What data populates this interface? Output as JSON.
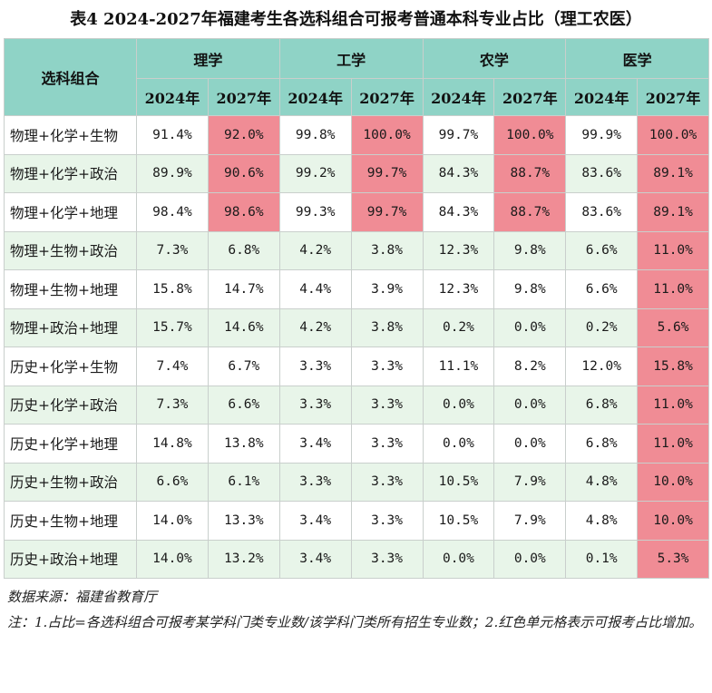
{
  "title": "表4 2024-2027年福建考生各选科组合可报考普通本科专业占比（理工农医）",
  "header": {
    "combo_label": "选科组合",
    "groups": [
      "理学",
      "工学",
      "农学",
      "医学"
    ],
    "year_a": "2024年",
    "year_b": "2027年"
  },
  "rows": [
    {
      "combo": "物理+化学+生物",
      "values": [
        "91.4%",
        "92.0%",
        "99.8%",
        "100.0%",
        "99.7%",
        "100.0%",
        "99.9%",
        "100.0%"
      ],
      "red": [
        false,
        true,
        false,
        true,
        false,
        true,
        false,
        true
      ]
    },
    {
      "combo": "物理+化学+政治",
      "values": [
        "89.9%",
        "90.6%",
        "99.2%",
        "99.7%",
        "84.3%",
        "88.7%",
        "83.6%",
        "89.1%"
      ],
      "red": [
        false,
        true,
        false,
        true,
        false,
        true,
        false,
        true
      ]
    },
    {
      "combo": "物理+化学+地理",
      "values": [
        "98.4%",
        "98.6%",
        "99.3%",
        "99.7%",
        "84.3%",
        "88.7%",
        "83.6%",
        "89.1%"
      ],
      "red": [
        false,
        true,
        false,
        true,
        false,
        true,
        false,
        true
      ]
    },
    {
      "combo": "物理+生物+政治",
      "values": [
        "7.3%",
        "6.8%",
        "4.2%",
        "3.8%",
        "12.3%",
        "9.8%",
        "6.6%",
        "11.0%"
      ],
      "red": [
        false,
        false,
        false,
        false,
        false,
        false,
        false,
        true
      ]
    },
    {
      "combo": "物理+生物+地理",
      "values": [
        "15.8%",
        "14.7%",
        "4.4%",
        "3.9%",
        "12.3%",
        "9.8%",
        "6.6%",
        "11.0%"
      ],
      "red": [
        false,
        false,
        false,
        false,
        false,
        false,
        false,
        true
      ]
    },
    {
      "combo": "物理+政治+地理",
      "values": [
        "15.7%",
        "14.6%",
        "4.2%",
        "3.8%",
        "0.2%",
        "0.0%",
        "0.2%",
        "5.6%"
      ],
      "red": [
        false,
        false,
        false,
        false,
        false,
        false,
        false,
        true
      ]
    },
    {
      "combo": "历史+化学+生物",
      "values": [
        "7.4%",
        "6.7%",
        "3.3%",
        "3.3%",
        "11.1%",
        "8.2%",
        "12.0%",
        "15.8%"
      ],
      "red": [
        false,
        false,
        false,
        false,
        false,
        false,
        false,
        true
      ]
    },
    {
      "combo": "历史+化学+政治",
      "values": [
        "7.3%",
        "6.6%",
        "3.3%",
        "3.3%",
        "0.0%",
        "0.0%",
        "6.8%",
        "11.0%"
      ],
      "red": [
        false,
        false,
        false,
        false,
        false,
        false,
        false,
        true
      ]
    },
    {
      "combo": "历史+化学+地理",
      "values": [
        "14.8%",
        "13.8%",
        "3.4%",
        "3.3%",
        "0.0%",
        "0.0%",
        "6.8%",
        "11.0%"
      ],
      "red": [
        false,
        false,
        false,
        false,
        false,
        false,
        false,
        true
      ]
    },
    {
      "combo": "历史+生物+政治",
      "values": [
        "6.6%",
        "6.1%",
        "3.3%",
        "3.3%",
        "10.5%",
        "7.9%",
        "4.8%",
        "10.0%"
      ],
      "red": [
        false,
        false,
        false,
        false,
        false,
        false,
        false,
        true
      ]
    },
    {
      "combo": "历史+生物+地理",
      "values": [
        "14.0%",
        "13.3%",
        "3.4%",
        "3.3%",
        "10.5%",
        "7.9%",
        "4.8%",
        "10.0%"
      ],
      "red": [
        false,
        false,
        false,
        false,
        false,
        false,
        false,
        true
      ]
    },
    {
      "combo": "历史+政治+地理",
      "values": [
        "14.0%",
        "13.2%",
        "3.4%",
        "3.3%",
        "0.0%",
        "0.0%",
        "0.1%",
        "5.3%"
      ],
      "red": [
        false,
        false,
        false,
        false,
        false,
        false,
        false,
        true
      ]
    }
  ],
  "source": "数据来源：福建省教育厅",
  "note": "注：1.占比=各选科组合可报考某学科门类专业数/该学科门类所有招生专业数；2.红色单元格表示可报考占比增加。",
  "colors": {
    "header": "#8fd3c6",
    "stripe": "#e8f5e9",
    "red": "#f08c95"
  }
}
